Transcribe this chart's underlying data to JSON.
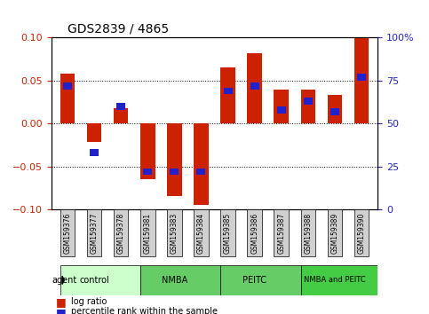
{
  "title": "GDS2839 / 4865",
  "samples": [
    "GSM159376",
    "GSM159377",
    "GSM159378",
    "GSM159381",
    "GSM159383",
    "GSM159384",
    "GSM159385",
    "GSM159386",
    "GSM159387",
    "GSM159388",
    "GSM159389",
    "GSM159390"
  ],
  "log_ratio": [
    0.058,
    -0.021,
    0.018,
    -0.065,
    -0.085,
    -0.095,
    0.065,
    0.082,
    0.04,
    0.04,
    0.033,
    0.1
  ],
  "percentile": [
    72,
    33,
    60,
    22,
    22,
    22,
    69,
    72,
    58,
    63,
    57,
    77
  ],
  "bar_color": "#cc2200",
  "pct_color": "#2222cc",
  "ylim": [
    -0.1,
    0.1
  ],
  "yticks_left": [
    -0.1,
    -0.05,
    0.0,
    0.05,
    0.1
  ],
  "yticks_right": [
    0,
    25,
    50,
    75,
    100
  ],
  "legend_red": "log ratio",
  "legend_blue": "percentile rank within the sample",
  "bar_width": 0.55,
  "agent_label": "agent",
  "background_color": "#ffffff",
  "plot_bg": "#ffffff",
  "axis_label_color_left": "#cc2200",
  "axis_label_color_right": "#2222cc",
  "group_colors": [
    "#ccffcc",
    "#66cc66",
    "#66cc66",
    "#44cc44"
  ],
  "group_labels": [
    "control",
    "NMBA",
    "PEITC",
    "NMBA and PEITC"
  ],
  "group_ranges": [
    [
      0,
      3
    ],
    [
      3,
      6
    ],
    [
      6,
      9
    ],
    [
      9,
      12
    ]
  ]
}
